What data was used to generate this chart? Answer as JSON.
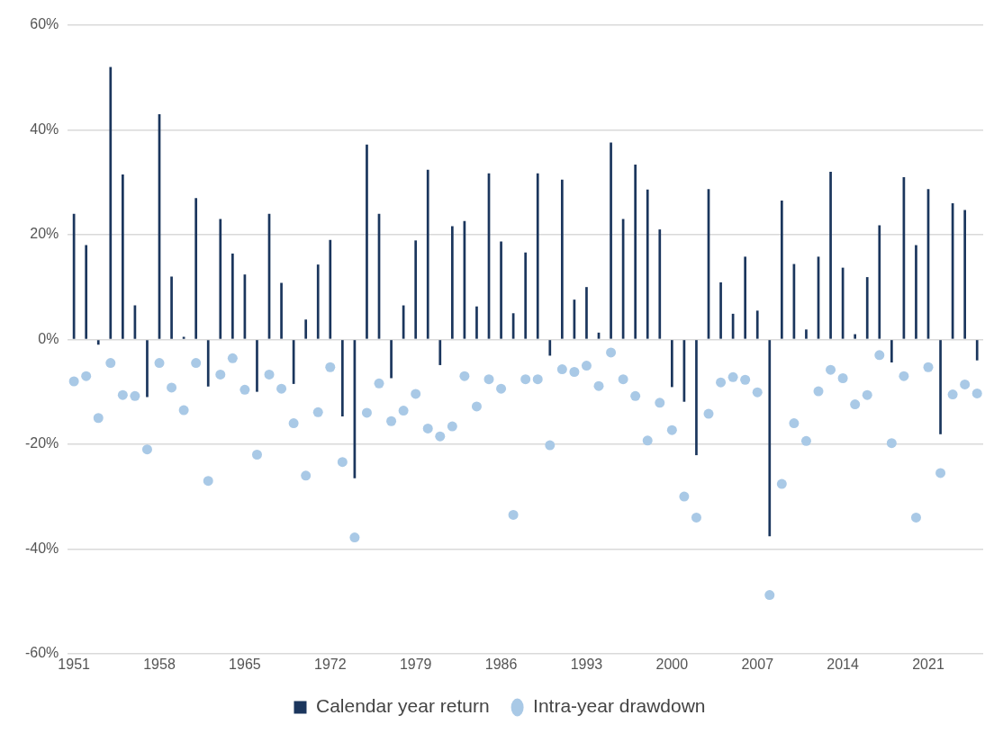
{
  "chart_data": {
    "type": "bar",
    "categories": [
      "1951",
      null,
      null,
      null,
      null,
      null,
      null,
      "1958",
      null,
      null,
      null,
      null,
      null,
      null,
      "1965",
      null,
      null,
      null,
      null,
      null,
      null,
      "1972",
      null,
      null,
      null,
      null,
      null,
      null,
      "1979",
      null,
      null,
      null,
      null,
      null,
      null,
      "1986",
      null,
      null,
      null,
      null,
      null,
      null,
      "1993",
      null,
      null,
      null,
      null,
      null,
      null,
      "2000",
      null,
      null,
      null,
      null,
      null,
      null,
      "2007",
      null,
      null,
      null,
      null,
      null,
      null,
      "2014",
      null,
      null,
      null,
      null,
      null,
      null,
      "2021",
      null,
      null,
      null,
      null
    ],
    "series": [
      {
        "name": "Calendar year return",
        "color": "#1b365d",
        "values": [
          24,
          18,
          -1,
          52,
          31.5,
          6.5,
          -11,
          43,
          12,
          0.5,
          27,
          -9,
          23,
          16.4,
          12.4,
          -10,
          24,
          10.8,
          -8.5,
          3.8,
          14.3,
          19,
          -14.7,
          -26.5,
          37.2,
          24,
          -7.4,
          6.5,
          18.9,
          32.4,
          -4.9,
          21.6,
          22.6,
          6.3,
          31.7,
          18.7,
          5,
          16.6,
          31.7,
          -3.1,
          30.5,
          7.6,
          10,
          1.3,
          37.6,
          23,
          33.4,
          28.6,
          21,
          -9.1,
          -11.9,
          -22.1,
          28.7,
          10.9,
          4.9,
          15.8,
          5.5,
          -37.6,
          26.5,
          14.4,
          1.9,
          15.8,
          32,
          13.7,
          1,
          11.9,
          21.8,
          -4.4,
          31,
          18,
          28.7,
          -18.1,
          26,
          24.7,
          -4
        ]
      },
      {
        "name": "Intra-year drawdown",
        "type": "scatter",
        "color": "#a9c9e6",
        "values": [
          -8,
          -7,
          -15,
          -4.5,
          -10.6,
          -10.8,
          -21,
          -4.5,
          -9.2,
          -13.5,
          -4.5,
          -27,
          -6.7,
          -3.6,
          -9.6,
          -22,
          -6.7,
          -9.4,
          -16,
          -26,
          -13.9,
          -5.3,
          -23.4,
          -37.8,
          -14,
          -8.4,
          -15.6,
          -13.6,
          -10.4,
          -17,
          -18.5,
          -16.6,
          -7,
          -12.8,
          -7.6,
          -9.4,
          -33.5,
          -7.6,
          -7.6,
          -20.2,
          -5.7,
          -6.2,
          -5,
          -8.9,
          -2.5,
          -7.6,
          -10.8,
          -19.3,
          -12.1,
          -17.3,
          -30,
          -34,
          -14.2,
          -8.2,
          -7.2,
          -7.7,
          -10.1,
          -48.8,
          -27.6,
          -16,
          -19.4,
          -9.9,
          -5.8,
          -7.4,
          -12.4,
          -10.6,
          -3,
          -19.8,
          -7,
          -34,
          -5.3,
          -25.5,
          -10.5,
          -8.6,
          -10.3
        ]
      }
    ],
    "ylim": [
      -60,
      60
    ],
    "yticks": [
      {
        "value": -60,
        "label": "-60%"
      },
      {
        "value": -40,
        "label": "-40%"
      },
      {
        "value": -20,
        "label": "-20%"
      },
      {
        "value": 0,
        "label": "0%"
      },
      {
        "value": 20,
        "label": "20%"
      },
      {
        "value": 40,
        "label": "40%"
      },
      {
        "value": 60,
        "label": "60%"
      }
    ],
    "grid": "y",
    "legend": "bottom",
    "marker": "circle"
  }
}
